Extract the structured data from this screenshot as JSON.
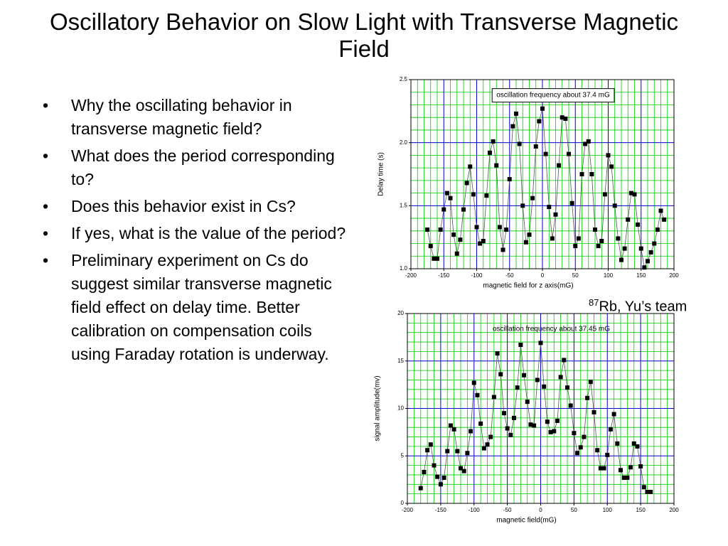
{
  "title": "Oscillatory Behavior on Slow Light with Transverse Magnetic Field",
  "bullets": [
    "Why the oscillating behavior in transverse magnetic field?",
    "What does the period corresponding to?",
    "Does this behavior exist in Cs?",
    "If yes, what is the value of the period?",
    "Preliminary experiment on Cs do suggest similar transverse magnetic field effect on delay time. Better calibration on compensation coils using Faraday rotation is underway."
  ],
  "caption": {
    "superscript": "87",
    "text": "Rb, Yu’s team"
  },
  "chart_data": [
    {
      "type": "line",
      "annotation": "oscillation frequency about 37.4 mG",
      "annotation_box": true,
      "xlabel": "magnetic field for z axis(mG)",
      "ylabel": "Delay time (s)",
      "xlim": [
        -200,
        200
      ],
      "xticks": [
        -200,
        -150,
        -100,
        -50,
        0,
        50,
        100,
        150,
        200
      ],
      "ylim": [
        1.0,
        2.5
      ],
      "yticks": [
        {
          "value": 1.0,
          "label": "1.0"
        },
        {
          "value": 1.5,
          "label": "1.5"
        },
        {
          "value": 2.0,
          "label": "2.0"
        },
        {
          "value": 2.5,
          "label": "2.5"
        }
      ],
      "grid": true,
      "major_grid_color": "#0000cc",
      "minor_grid_color": "#00cc00",
      "minor_divisions": 5,
      "marker": "square",
      "color": "#000000",
      "line_color": "#555555",
      "x": [
        -175,
        -170,
        -165,
        -160,
        -155,
        -150,
        -145,
        -140,
        -135,
        -130,
        -125,
        -120,
        -115,
        -110,
        -105,
        -100,
        -95,
        -90,
        -85,
        -80,
        -75,
        -70,
        -65,
        -60,
        -55,
        -50,
        -45,
        -40,
        -35,
        -30,
        -25,
        -20,
        -15,
        -10,
        -5,
        0,
        5,
        10,
        15,
        20,
        25,
        30,
        35,
        40,
        45,
        50,
        55,
        60,
        65,
        70,
        75,
        80,
        85,
        90,
        95,
        100,
        105,
        110,
        115,
        120,
        125,
        130,
        135,
        140,
        145,
        150,
        155,
        160,
        165,
        170,
        175,
        180,
        185
      ],
      "values": [
        1.31,
        1.18,
        1.08,
        1.08,
        1.31,
        1.47,
        1.6,
        1.56,
        1.27,
        1.12,
        1.23,
        1.47,
        1.68,
        1.81,
        1.59,
        1.33,
        1.2,
        1.22,
        1.58,
        1.92,
        2.01,
        1.82,
        1.33,
        1.15,
        1.31,
        1.71,
        2.13,
        2.23,
        1.99,
        1.5,
        1.21,
        1.27,
        1.56,
        1.97,
        2.17,
        2.27,
        1.91,
        1.49,
        1.24,
        1.43,
        1.82,
        2.2,
        2.19,
        1.91,
        1.52,
        1.18,
        1.24,
        1.75,
        1.99,
        2.01,
        1.75,
        1.31,
        1.18,
        1.22,
        1.59,
        1.9,
        1.81,
        1.5,
        1.24,
        1.07,
        1.16,
        1.39,
        1.6,
        1.59,
        1.35,
        1.16,
        1.01,
        1.06,
        1.13,
        1.2,
        1.31,
        1.46,
        1.39
      ]
    },
    {
      "type": "line",
      "annotation": "oscillation frequency about 37.45 mG",
      "annotation_box": false,
      "xlabel": "magnetic field(mG)",
      "ylabel": "signal amplitude(mv)",
      "xlim": [
        -200,
        200
      ],
      "xticks": [
        -200,
        -150,
        -100,
        -50,
        0,
        50,
        100,
        150,
        200
      ],
      "ylim": [
        0,
        20
      ],
      "yticks": [
        0,
        5,
        10,
        15,
        20
      ],
      "grid": true,
      "major_grid_color": "#0000cc",
      "minor_grid_color": "#00cc00",
      "minor_divisions": 5,
      "marker": "square",
      "color": "#000000",
      "line_color": "#555555",
      "x": [
        -180,
        -175,
        -170,
        -165,
        -160,
        -155,
        -150,
        -145,
        -140,
        -135,
        -130,
        -125,
        -120,
        -115,
        -110,
        -105,
        -100,
        -95,
        -90,
        -85,
        -80,
        -75,
        -70,
        -65,
        -60,
        -55,
        -50,
        -45,
        -40,
        -35,
        -30,
        -25,
        -20,
        -15,
        -10,
        -5,
        0,
        5,
        10,
        15,
        20,
        25,
        30,
        35,
        40,
        45,
        50,
        55,
        60,
        65,
        70,
        75,
        80,
        85,
        90,
        95,
        100,
        105,
        110,
        115,
        120,
        125,
        130,
        135,
        140,
        145,
        150,
        155,
        160,
        165
      ],
      "values": [
        1.6,
        3.3,
        5.6,
        6.2,
        4.0,
        2.8,
        2.0,
        2.7,
        5.5,
        8.2,
        7.8,
        5.5,
        3.7,
        3.4,
        5.3,
        7.6,
        12.7,
        11.4,
        8.4,
        5.8,
        6.2,
        7.0,
        11.2,
        15.8,
        13.6,
        9.5,
        7.9,
        7.2,
        9.0,
        12.2,
        16.7,
        13.5,
        10.7,
        8.3,
        8.2,
        13.0,
        16.9,
        12.3,
        8.6,
        7.5,
        7.6,
        8.7,
        13.3,
        15.1,
        12.2,
        10.3,
        7.4,
        5.3,
        5.9,
        7.0,
        11.1,
        12.8,
        9.6,
        5.6,
        3.7,
        3.7,
        5.1,
        7.8,
        9.4,
        6.3,
        3.5,
        2.7,
        2.7,
        3.8,
        6.3,
        6.0,
        3.9,
        1.7,
        1.2,
        1.2
      ]
    }
  ]
}
